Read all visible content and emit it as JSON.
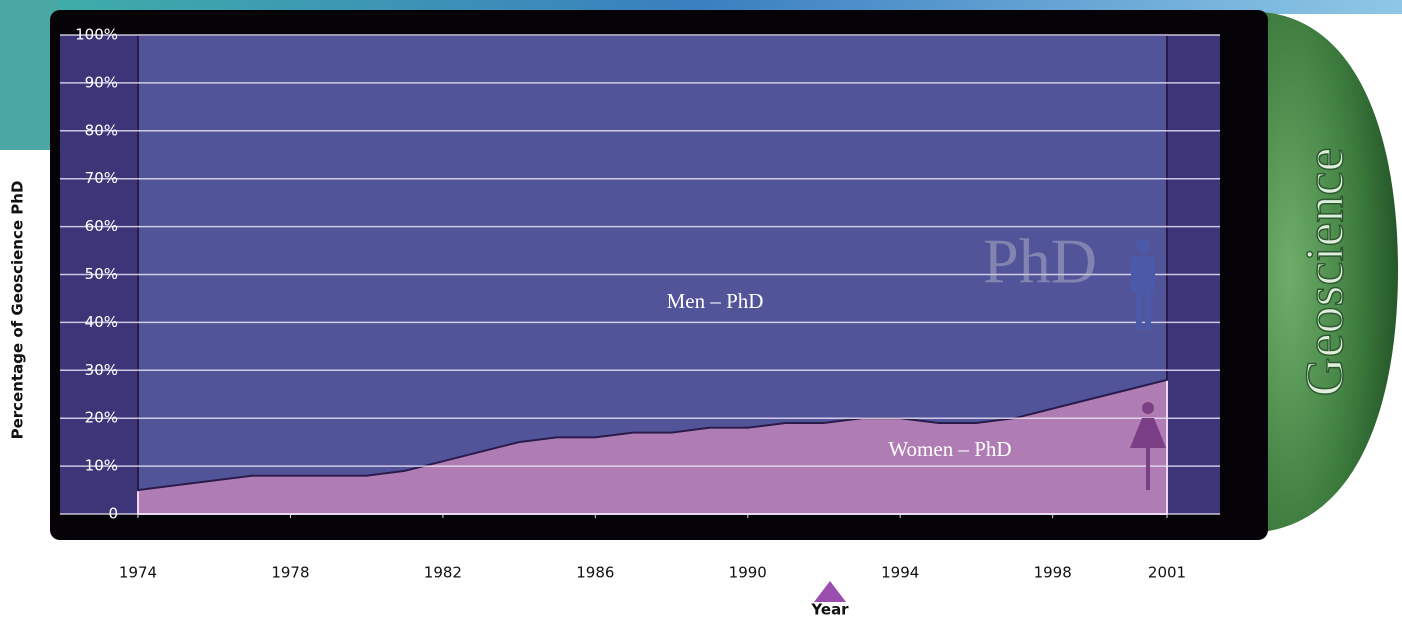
{
  "chart_data": {
    "type": "stacked-area",
    "y_label": "Percentage of Geoscience PhD",
    "x_label": "Year",
    "watermark": "PhD",
    "side_label": "Geoscience",
    "x": [
      1974,
      1975,
      1976,
      1977,
      1978,
      1979,
      1980,
      1981,
      1982,
      1983,
      1984,
      1985,
      1986,
      1987,
      1988,
      1989,
      1990,
      1991,
      1992,
      1993,
      1994,
      1995,
      1996,
      1997,
      1998,
      1999,
      2000,
      2001
    ],
    "series": [
      {
        "name": "Women – PhD",
        "color": "#b07cb4",
        "values": [
          5,
          6,
          7,
          8,
          8,
          8,
          8,
          9,
          11,
          13,
          15,
          16,
          16,
          17,
          17,
          18,
          18,
          19,
          19,
          20,
          20,
          19,
          19,
          20,
          22,
          24,
          26,
          28
        ]
      },
      {
        "name": "Men – PhD",
        "color": "#52549a",
        "values": [
          95,
          94,
          93,
          92,
          92,
          92,
          92,
          91,
          89,
          87,
          85,
          84,
          84,
          83,
          83,
          82,
          82,
          81,
          81,
          80,
          80,
          81,
          81,
          80,
          78,
          76,
          74,
          72
        ]
      }
    ],
    "xlim": [
      1971.95,
      2002.4
    ],
    "xticks": [
      1974,
      1978,
      1982,
      1986,
      1990,
      1994,
      1998,
      2001
    ],
    "ylim": [
      0,
      100
    ],
    "yticks": [
      0,
      {
        "value": 10,
        "label": "10%"
      },
      {
        "value": 20,
        "label": "20%"
      },
      {
        "value": 30,
        "label": "30%"
      },
      {
        "value": 40,
        "label": "40%"
      },
      {
        "value": 50,
        "label": "50%"
      },
      {
        "value": 60,
        "label": "60%"
      },
      {
        "value": 70,
        "label": "70%"
      },
      {
        "value": 80,
        "label": "80%"
      },
      {
        "value": 90,
        "label": "90%"
      },
      {
        "value": 100,
        "label": "100%"
      }
    ],
    "grid": true
  }
}
